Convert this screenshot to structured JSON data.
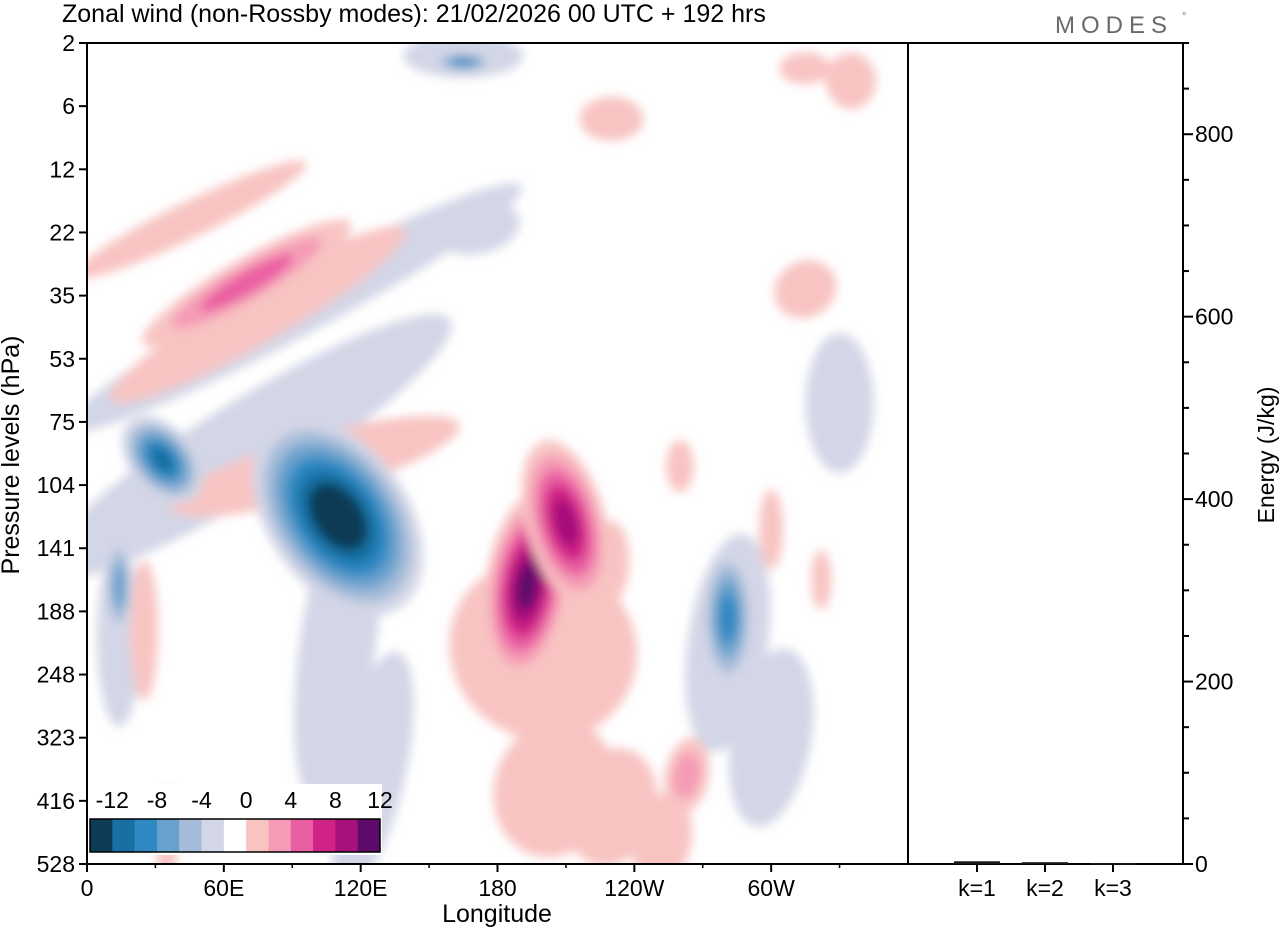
{
  "header": {
    "title": "Zonal wind (non-Rossby modes):  21/02/2026  00 UTC  + 192 hrs",
    "brand": "MODES",
    "brand_mark": "°"
  },
  "chart_data": [
    {
      "type": "heatmap",
      "title": "Zonal wind (non-Rossby modes):  21/02/2026  00 UTC  + 192 hrs",
      "xlabel": "Longitude",
      "ylabel": "Pressure levels (hPa)",
      "x_ticks": [
        "0",
        "60E",
        "120E",
        "180",
        "120W",
        "60W"
      ],
      "x_tick_degrees": [
        0,
        60,
        120,
        180,
        240,
        300
      ],
      "xlim": [
        0,
        360
      ],
      "y_ticks": [
        "2",
        "6",
        "12",
        "22",
        "35",
        "53",
        "75",
        "104",
        "141",
        "188",
        "248",
        "323",
        "416",
        "528"
      ],
      "colorbar": {
        "labels": [
          "-12",
          "-8",
          "-4",
          "0",
          "4",
          "8",
          "12"
        ],
        "levels": [
          -14,
          -12,
          -10,
          -8,
          -6,
          -4,
          -2,
          2,
          4,
          6,
          8,
          10,
          12,
          14
        ],
        "colors": [
          "#0d3b55",
          "#176fa3",
          "#2e88c2",
          "#6aa1cc",
          "#a4bcd9",
          "#d3d6e6",
          "#ffffff",
          "#f8c4c2",
          "#f59bb6",
          "#ea5fa2",
          "#cf2386",
          "#a6117a",
          "#5e0a6b"
        ]
      },
      "features": [
        {
          "name": "strong easterly core",
          "lon": 110,
          "level_index": 7.5,
          "value": -14
        },
        {
          "name": "westerly core east",
          "lon": 193,
          "level_index": 8.6,
          "value": 12
        },
        {
          "name": "westerly core north",
          "lon": 210,
          "level_index": 7.6,
          "value": 11
        },
        {
          "name": "easterly core west",
          "lon": 33,
          "level_index": 6.6,
          "value": -10
        },
        {
          "name": "easterly core 70W",
          "lon": 281,
          "level_index": 9.1,
          "value": -8
        },
        {
          "name": "easterly core 10E",
          "lon": 14,
          "level_index": 8.6,
          "value": -6
        },
        {
          "name": "westerly band 55E",
          "lon": 70,
          "level_index": 3.8,
          "value": 6
        },
        {
          "name": "westerly 80W",
          "lon": 263,
          "level_index": 11.6,
          "value": 4
        }
      ]
    },
    {
      "type": "bar",
      "categories": [
        "k=1",
        "k=2",
        "k=3"
      ],
      "values": [
        3,
        2,
        1
      ],
      "ylabel": "Energy (J/kg)",
      "ylim": [
        0,
        900
      ],
      "y_ticks": [
        0,
        200,
        400,
        600,
        800
      ]
    }
  ]
}
